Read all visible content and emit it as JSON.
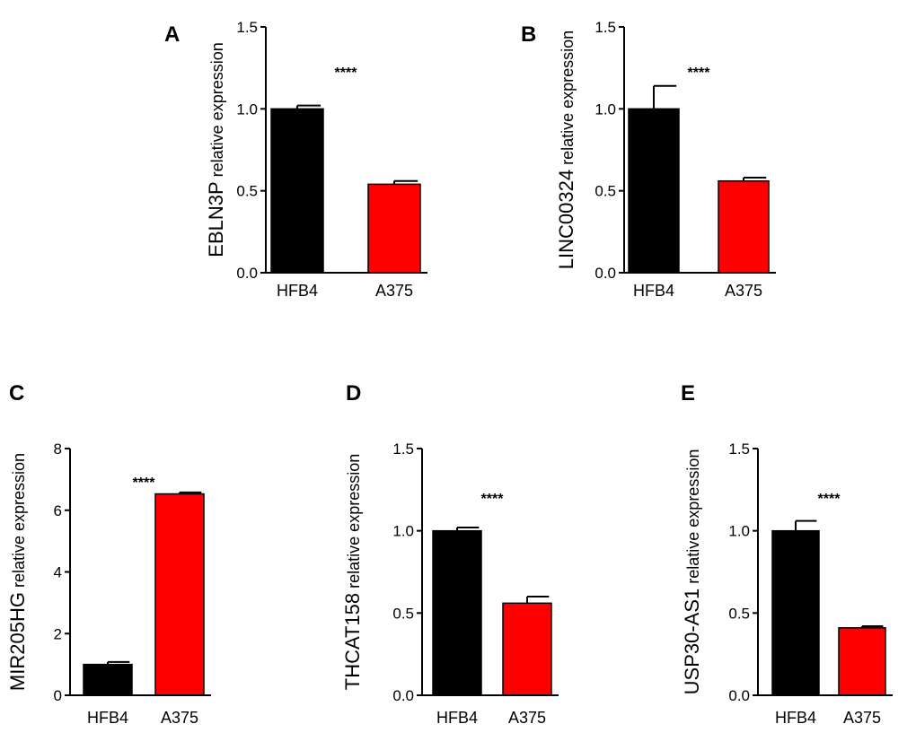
{
  "figure": {
    "chart_data": [
      {
        "panel": "A",
        "type": "bar",
        "gene": "EBLN3P",
        "ylabel": "EBLN3P relative expression",
        "ylabel_rest": "relative  expression",
        "categories": [
          "HFB4",
          "A375"
        ],
        "values": [
          1.0,
          0.54
        ],
        "errors": [
          0.02,
          0.02
        ],
        "colors": [
          "#000000",
          "#ff0000"
        ],
        "ylim": [
          0,
          1.5
        ],
        "yticks": [
          0.0,
          0.5,
          1.0,
          1.5
        ],
        "ytick_labels": [
          "0.0",
          "0.5",
          "1.0",
          "1.5"
        ],
        "significance": "****"
      },
      {
        "panel": "B",
        "type": "bar",
        "gene": "LINC00324",
        "ylabel": "LINC00324 relative expression",
        "ylabel_rest": "relative  expression",
        "categories": [
          "HFB4",
          "A375"
        ],
        "values": [
          1.0,
          0.56
        ],
        "errors": [
          0.14,
          0.02
        ],
        "colors": [
          "#000000",
          "#ff0000"
        ],
        "ylim": [
          0,
          1.5
        ],
        "yticks": [
          0.0,
          0.5,
          1.0,
          1.5
        ],
        "ytick_labels": [
          "0.0",
          "0.5",
          "1.0",
          "1.5"
        ],
        "significance": "****"
      },
      {
        "panel": "C",
        "type": "bar",
        "gene": "MIR205HG",
        "ylabel": "MIR205HG relative expression",
        "ylabel_rest": "relative  expression",
        "categories": [
          "HFB4",
          "A375"
        ],
        "values": [
          1.0,
          6.53
        ],
        "errors": [
          0.08,
          0.05
        ],
        "colors": [
          "#000000",
          "#ff0000"
        ],
        "ylim": [
          0,
          8
        ],
        "yticks": [
          0,
          2,
          4,
          6,
          8
        ],
        "ytick_labels": [
          "0",
          "2",
          "4",
          "6",
          "8"
        ],
        "significance": "****"
      },
      {
        "panel": "D",
        "type": "bar",
        "gene": "THCAT158",
        "ylabel": "THCAT158 relative expression",
        "ylabel_rest": "relative  expression",
        "categories": [
          "HFB4",
          "A375"
        ],
        "values": [
          1.0,
          0.56
        ],
        "errors": [
          0.02,
          0.04
        ],
        "colors": [
          "#000000",
          "#ff0000"
        ],
        "ylim": [
          0,
          1.5
        ],
        "yticks": [
          0.0,
          0.5,
          1.0,
          1.5
        ],
        "ytick_labels": [
          "0.0",
          "0.5",
          "1.0",
          "1.5"
        ],
        "significance": "****"
      },
      {
        "panel": "E",
        "type": "bar",
        "gene": "USP30-AS1",
        "ylabel": "USP30-AS1 relative expression",
        "ylabel_rest": "relative  expression",
        "categories": [
          "HFB4",
          "A375"
        ],
        "values": [
          1.0,
          0.41
        ],
        "errors": [
          0.06,
          0.01
        ],
        "colors": [
          "#000000",
          "#ff0000"
        ],
        "ylim": [
          0,
          1.5
        ],
        "yticks": [
          0.0,
          0.5,
          1.0,
          1.5
        ],
        "ytick_labels": [
          "0.0",
          "0.5",
          "1.0",
          "1.5"
        ],
        "significance": "****"
      }
    ]
  }
}
